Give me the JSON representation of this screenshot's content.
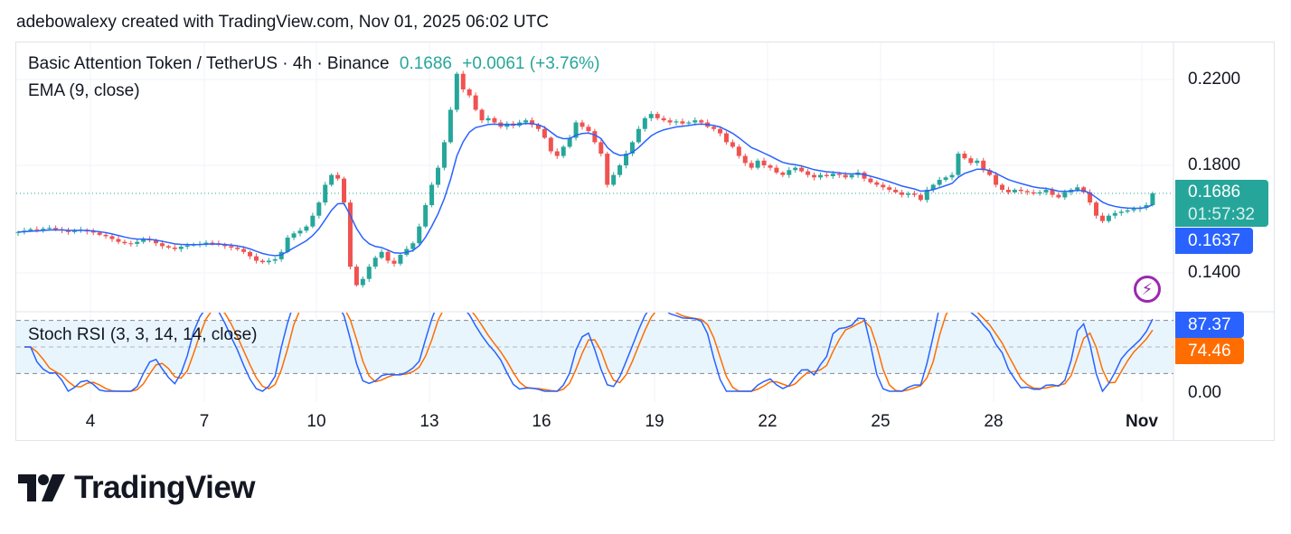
{
  "credit": "adebowalexy created with TradingView.com, Nov 01, 2025 06:02 UTC",
  "legend": {
    "symbol": "Basic Attention Token / TetherUS · 4h · Binance",
    "price": "0.1686",
    "change": "+0.0061 (+3.76%)",
    "ema": "EMA (9, close)",
    "stoch": "Stoch RSI (3, 3, 14, 14, close)"
  },
  "tags": {
    "last_price": "0.1686",
    "countdown": "01:57:32",
    "ema_value": "0.1637",
    "k_value": "87.37",
    "d_value": "74.46"
  },
  "brand": "TradingView",
  "colors": {
    "up": "#26a69a",
    "down": "#ef5350",
    "ema": "#2962ff",
    "k": "#2962ff",
    "d": "#ff6d00",
    "band": "#e3f2fd"
  },
  "chart_data": {
    "type": "candlestick",
    "timeframe": "4h",
    "y_scale": "log",
    "price_ticks": [
      "0.2200",
      "0.1800",
      "0.1400"
    ],
    "rsi_ticks": [
      "0.00"
    ],
    "rsi_levels": [
      80,
      20
    ],
    "x_ticks": [
      "4",
      "7",
      "10",
      "13",
      "16",
      "19",
      "22",
      "25",
      "28",
      "Nov"
    ],
    "start": "Oct 02",
    "closes": [
      0.154,
      0.1545,
      0.155,
      0.1548,
      0.1552,
      0.1555,
      0.155,
      0.1546,
      0.154,
      0.1545,
      0.1548,
      0.1542,
      0.1538,
      0.153,
      0.1525,
      0.1515,
      0.1505,
      0.15,
      0.1498,
      0.1505,
      0.1515,
      0.151,
      0.15,
      0.149,
      0.1485,
      0.148,
      0.1488,
      0.1492,
      0.1495,
      0.1498,
      0.1502,
      0.15,
      0.1495,
      0.149,
      0.1485,
      0.148,
      0.147,
      0.1455,
      0.144,
      0.1435,
      0.144,
      0.1445,
      0.147,
      0.152,
      0.1535,
      0.1545,
      0.156,
      0.16,
      0.165,
      0.172,
      0.176,
      0.1745,
      0.165,
      0.142,
      0.136,
      0.138,
      0.142,
      0.145,
      0.147,
      0.144,
      0.143,
      0.146,
      0.148,
      0.15,
      0.156,
      0.164,
      0.172,
      0.179,
      0.19,
      0.205,
      0.223,
      0.215,
      0.212,
      0.205,
      0.2,
      0.201,
      0.199,
      0.197,
      0.1985,
      0.1975,
      0.199,
      0.2,
      0.198,
      0.196,
      0.192,
      0.186,
      0.184,
      0.188,
      0.192,
      0.199,
      0.197,
      0.195,
      0.19,
      0.185,
      0.172,
      0.176,
      0.18,
      0.185,
      0.19,
      0.196,
      0.201,
      0.203,
      0.201,
      0.2,
      0.199,
      0.1995,
      0.1985,
      0.199,
      0.2,
      0.199,
      0.197,
      0.196,
      0.194,
      0.19,
      0.188,
      0.184,
      0.181,
      0.179,
      0.182,
      0.18,
      0.179,
      0.177,
      0.176,
      0.178,
      0.179,
      0.1775,
      0.176,
      0.175,
      0.176,
      0.1755,
      0.1765,
      0.176,
      0.175,
      0.176,
      0.177,
      0.1745,
      0.173,
      0.172,
      0.171,
      0.17,
      0.169,
      0.168,
      0.1685,
      0.168,
      0.166,
      0.17,
      0.172,
      0.174,
      0.175,
      0.176,
      0.185,
      0.183,
      0.181,
      0.182,
      0.178,
      0.176,
      0.172,
      0.17,
      0.169,
      0.17,
      0.1695,
      0.169,
      0.1685,
      0.169,
      0.17,
      0.168,
      0.167,
      0.169,
      0.17,
      0.171,
      0.169,
      0.165,
      0.16,
      0.158,
      0.16,
      0.161,
      0.1615,
      0.162,
      0.1625,
      0.163,
      0.164,
      0.1686
    ],
    "indicators": [
      "EMA (9, close)",
      "Stoch RSI (3, 3, 14, 14, close)"
    ]
  }
}
